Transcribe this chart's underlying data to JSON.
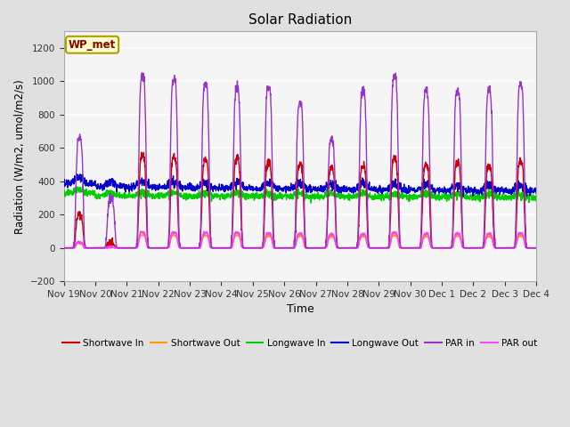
{
  "title": "Solar Radiation",
  "ylabel": "Radiation (W/m2, umol/m2/s)",
  "xlabel": "Time",
  "ylim": [
    -200,
    1300
  ],
  "yticks": [
    -200,
    0,
    200,
    400,
    600,
    800,
    1000,
    1200
  ],
  "n_days": 15,
  "x_tick_labels": [
    "Nov 19",
    "Nov 20",
    "Nov 21",
    "Nov 22",
    "Nov 23",
    "Nov 24",
    "Nov 25",
    "Nov 26",
    "Nov 27",
    "Nov 28",
    "Nov 29",
    "Nov 30",
    "Dec 1",
    "Dec 2",
    "Dec 3",
    "Dec 4"
  ],
  "station_label": "WP_met",
  "legend_entries": [
    "Shortwave In",
    "Shortwave Out",
    "Longwave In",
    "Longwave Out",
    "PAR in",
    "PAR out"
  ],
  "legend_colors": [
    "#cc0000",
    "#ff9900",
    "#00cc00",
    "#0000cc",
    "#9933cc",
    "#ff44ff"
  ],
  "line_colors": {
    "sw_in": "#cc0000",
    "sw_out": "#ff9900",
    "lw_in": "#00cc00",
    "lw_out": "#0000cc",
    "par_in": "#9933cc",
    "par_out": "#ff44ff"
  },
  "sw_peaks": [
    200,
    30,
    550,
    545,
    530,
    540,
    510,
    500,
    480,
    495,
    540,
    500,
    510,
    490,
    520
  ],
  "par_peaks": [
    660,
    300,
    1030,
    1015,
    985,
    960,
    970,
    870,
    650,
    940,
    1030,
    950,
    940,
    945,
    985
  ],
  "lw_in_base": 315,
  "lw_out_base": 370,
  "background_color": "#e0e0e0",
  "plot_bg_color": "#f5f5f5",
  "grid_color": "#ffffff"
}
